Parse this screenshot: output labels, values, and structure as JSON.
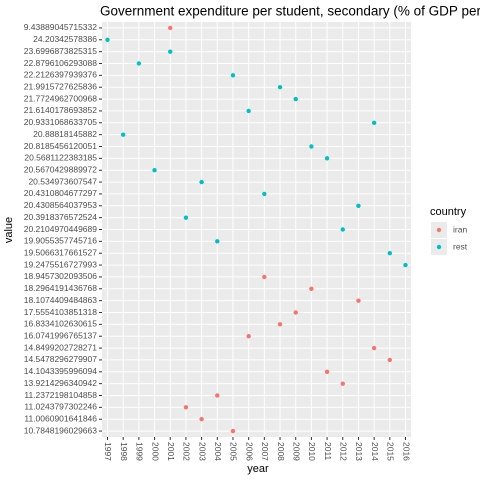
{
  "chart_data": {
    "type": "scatter",
    "title": "Government expenditure per student, secondary (% of GDP per c",
    "x_label": "year",
    "y_label": "value",
    "legend_title": "country",
    "legend_position": "right",
    "grid": true,
    "categories": [
      "9.43889045715332",
      "24.20342578386",
      "23.6996873825315",
      "22.8796106293088",
      "22.2126397939376",
      "21.9915727625836",
      "21.7724962700968",
      "21.6140178693852",
      "20.9331068633705",
      "20.88818145882",
      "20.8185456120051",
      "20.5681122383185",
      "20.5670429889972",
      "20.534973607547",
      "20.4310804677297",
      "20.4308564037953",
      "20.3918376572524",
      "20.2104970449689",
      "19.9055357745716",
      "19.5066317661527",
      "19.2475516727993",
      "18.9457302093506",
      "18.2964191436768",
      "18.1074409484863",
      "17.5554103851318",
      "16.8334102630615",
      "16.0741996765137",
      "14.8499202728271",
      "14.5478296279907",
      "14.1043395996094",
      "13.9214296340942",
      "11.2372198104858",
      "11.0243797302246",
      "11.0060901641846",
      "10.7848196029663"
    ],
    "xlim": [
      1996.65,
      2016.35
    ],
    "xticks": [
      1997,
      1998,
      1999,
      2000,
      2001,
      2002,
      2003,
      2004,
      2005,
      2006,
      2007,
      2008,
      2009,
      2010,
      2011,
      2012,
      2013,
      2014,
      2015,
      2016
    ],
    "series": [
      {
        "name": "iran",
        "color": "#F8766D",
        "x": [
          2001,
          2007,
          2010,
          2013,
          2009,
          2008,
          2006,
          2014,
          2015,
          2011,
          2012,
          2004,
          2002,
          2003,
          2005
        ],
        "values": [
          "9.43889045715332",
          "18.9457302093506",
          "18.2964191436768",
          "18.1074409484863",
          "17.5554103851318",
          "16.8334102630615",
          "16.0741996765137",
          "14.8499202728271",
          "14.5478296279907",
          "14.1043395996094",
          "13.9214296340942",
          "11.2372198104858",
          "11.0243797302246",
          "11.0060901641846",
          "10.7848196029663"
        ]
      },
      {
        "name": "rest",
        "color": "#00BFC4",
        "x": [
          1997,
          2001,
          1999,
          2005,
          2008,
          2009,
          2006,
          2014,
          1998,
          2010,
          2011,
          2000,
          2003,
          2007,
          2013,
          2002,
          2012,
          2004,
          2015,
          2016
        ],
        "values": [
          "24.20342578386",
          "23.6996873825315",
          "22.8796106293088",
          "22.2126397939376",
          "21.9915727625836",
          "21.7724962700968",
          "21.6140178693852",
          "20.9331068633705",
          "20.88818145882",
          "20.8185456120051",
          "20.5681122383185",
          "20.5670429889972",
          "20.534973607547",
          "20.4310804677297",
          "20.4308564037953",
          "20.3918376572524",
          "20.2104970449689",
          "19.9055357745716",
          "19.5066317661527",
          "19.2475516727993"
        ]
      }
    ]
  }
}
